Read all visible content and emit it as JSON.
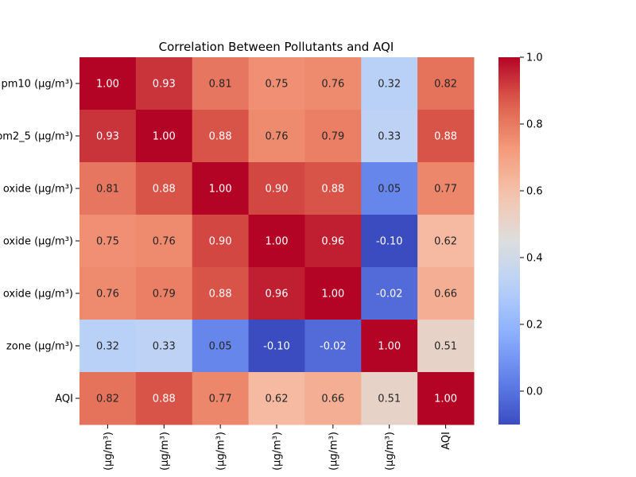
{
  "chart_data": {
    "type": "heatmap",
    "title": "Correlation Between Pollutants and AQI",
    "row_labels": [
      "pm10 (µg/m³)",
      "pm2_5 (µg/m³)",
      "oxide (µg/m³)",
      "oxide (µg/m³)",
      "oxide (µg/m³)",
      "zone (µg/m³)",
      "AQI"
    ],
    "col_labels": [
      "(µg/m³)",
      "(µg/m³)",
      "(µg/m³)",
      "(µg/m³)",
      "(µg/m³)",
      "(µg/m³)",
      "AQI"
    ],
    "values": [
      [
        1.0,
        0.93,
        0.81,
        0.75,
        0.76,
        0.32,
        0.82
      ],
      [
        0.93,
        1.0,
        0.88,
        0.76,
        0.79,
        0.33,
        0.88
      ],
      [
        0.81,
        0.88,
        1.0,
        0.9,
        0.88,
        0.05,
        0.77
      ],
      [
        0.75,
        0.76,
        0.9,
        1.0,
        0.96,
        -0.1,
        0.62
      ],
      [
        0.76,
        0.79,
        0.88,
        0.96,
        1.0,
        -0.02,
        0.66
      ],
      [
        0.32,
        0.33,
        0.05,
        -0.1,
        -0.02,
        1.0,
        0.51
      ],
      [
        0.82,
        0.88,
        0.77,
        0.62,
        0.66,
        0.51,
        1.0
      ]
    ],
    "value_format": "0.00",
    "colormap": "coolwarm",
    "colorbar": {
      "vmin": -0.1,
      "vmax": 1.0,
      "ticks": [
        0.0,
        0.2,
        0.4,
        0.6,
        0.8,
        1.0
      ],
      "tick_labels": [
        "0.0",
        "0.2",
        "0.4",
        "0.6",
        "0.8",
        "1.0"
      ]
    }
  }
}
